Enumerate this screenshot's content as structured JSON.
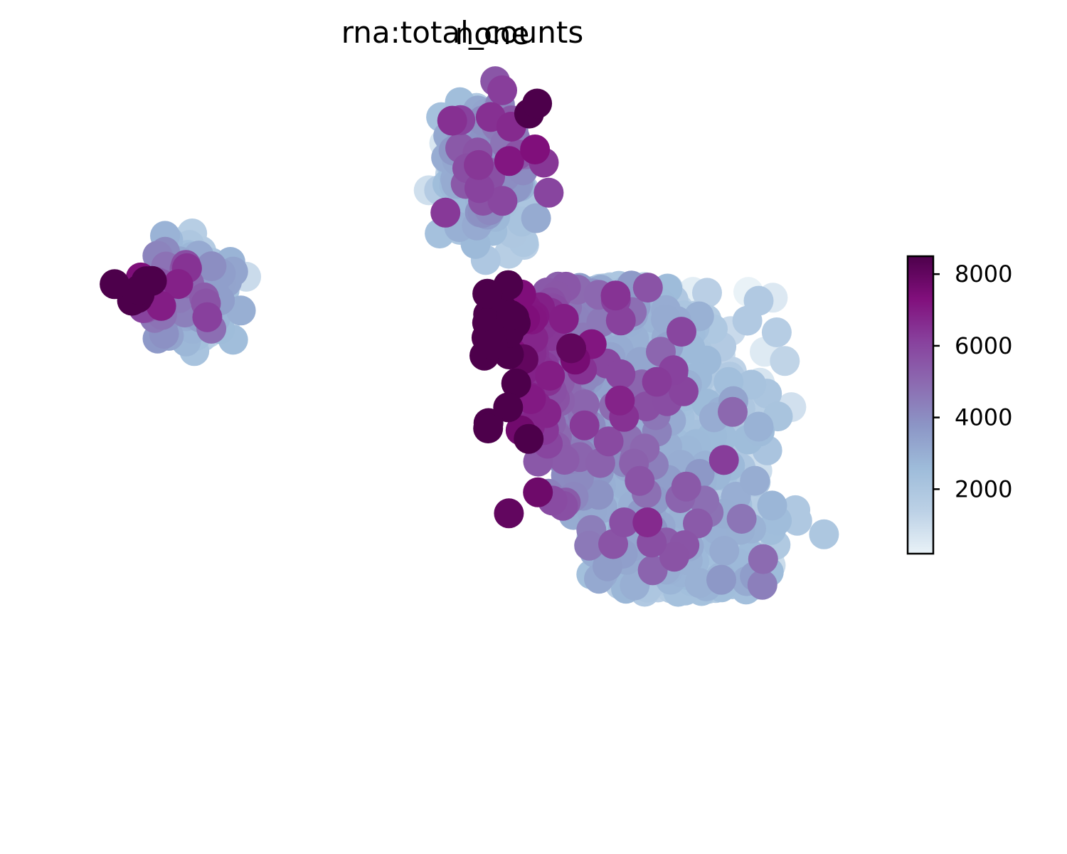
{
  "chart_data": {
    "type": "scatter",
    "titles": [
      "rna:total_counts",
      "none"
    ],
    "xlabel": "",
    "ylabel": "",
    "grid": false,
    "axes_visible": false,
    "colorbar": {
      "colormap": "BuPu",
      "range": [
        200,
        8500
      ],
      "ticks": [
        2000,
        4000,
        6000,
        8000
      ],
      "tick_labels": [
        "2000",
        "4000",
        "6000",
        "8000"
      ],
      "colors": [
        "#e9f2f7",
        "#bcd1e6",
        "#9ebcda",
        "#8c96c6",
        "#8c6bb1",
        "#88419d",
        "#810f7c",
        "#4d004b"
      ]
    },
    "clusters": [
      {
        "name": "",
        "center": [
          -6.6,
          5.0
        ],
        "spread": [
          0.9,
          1.2
        ],
        "n": 320,
        "base": 2200,
        "edge_high_side": "left"
      },
      {
        "name": "",
        "center": [
          0.6,
          8.6
        ],
        "spread": [
          1.0,
          1.9
        ],
        "n": 380,
        "base": 2100,
        "edge_high_side": "top-right"
      },
      {
        "name": "",
        "center": [
          4.3,
          0.9
        ],
        "spread": [
          2.4,
          4.8
        ],
        "n": 1400,
        "base": 1800,
        "edge_high_side": "left"
      }
    ]
  }
}
